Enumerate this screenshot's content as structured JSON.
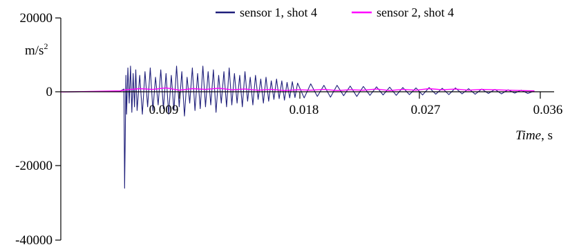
{
  "chart_data": {
    "type": "line",
    "title": "",
    "xlabel_italic": "Time",
    "xlabel_rest": ", s",
    "ylabel_base": "m/s",
    "ylabel_exp": "2",
    "xlim": [
      0,
      0.0375
    ],
    "ylim": [
      -40000,
      20000
    ],
    "x_ticks": [
      0.009,
      0.018,
      0.027,
      0.036
    ],
    "x_tick_labels": [
      "0.009",
      "0.018",
      "0.027",
      "0.036"
    ],
    "y_ticks": [
      20000,
      0,
      -20000,
      -40000
    ],
    "y_tick_labels": [
      "20000",
      "0",
      "-20000",
      "-40000"
    ],
    "grid": false,
    "legend_position": "top",
    "series": [
      {
        "name": "sensor 1, shot 4",
        "color": "#1f1f7a",
        "values_description": "impact acceleration trace",
        "x": [
          0,
          0.0045,
          0.0048,
          0.00485,
          0.0049,
          0.00495,
          0.005,
          0.0051,
          0.0052,
          0.0053,
          0.0054,
          0.0055,
          0.0056,
          0.0057,
          0.0058,
          0.006,
          0.0062,
          0.0064,
          0.0066,
          0.0068,
          0.007,
          0.0072,
          0.0074,
          0.0076,
          0.0078,
          0.008,
          0.0082,
          0.0084,
          0.0086,
          0.0088,
          0.009,
          0.0092,
          0.0094,
          0.0096,
          0.0098,
          0.01,
          0.0102,
          0.0104,
          0.0106,
          0.0108,
          0.011,
          0.0112,
          0.0114,
          0.0116,
          0.0118,
          0.012,
          0.0122,
          0.0124,
          0.0126,
          0.0128,
          0.013,
          0.0132,
          0.0134,
          0.0136,
          0.0138,
          0.014,
          0.0142,
          0.0144,
          0.0146,
          0.0148,
          0.015,
          0.0152,
          0.0154,
          0.0156,
          0.0158,
          0.016,
          0.0162,
          0.0164,
          0.0166,
          0.0168,
          0.017,
          0.0172,
          0.0174,
          0.0176,
          0.0178,
          0.018,
          0.0185,
          0.019,
          0.0195,
          0.02,
          0.0205,
          0.021,
          0.0215,
          0.022,
          0.0225,
          0.023,
          0.0235,
          0.024,
          0.0245,
          0.025,
          0.0255,
          0.026,
          0.0265,
          0.027,
          0.0275,
          0.028,
          0.0285,
          0.029,
          0.0295,
          0.03,
          0.0305,
          0.031,
          0.0315,
          0.032,
          0.0325,
          0.033,
          0.0335,
          0.034,
          0.0345,
          0.035,
          0.0355,
          0.036
        ],
        "y": [
          0,
          200,
          800,
          -26000,
          -12000,
          4500,
          -6000,
          6500,
          -3000,
          7000,
          -5500,
          5000,
          -4000,
          6000,
          -5000,
          4500,
          -6000,
          5500,
          -4000,
          6500,
          -5000,
          4000,
          -3500,
          6000,
          -4500,
          5000,
          -6000,
          4500,
          -5000,
          7000,
          -4000,
          5500,
          -6500,
          4000,
          -3000,
          6500,
          -5000,
          5000,
          -4500,
          7000,
          -4000,
          5500,
          -3500,
          6000,
          -5500,
          4500,
          -3000,
          5500,
          -4000,
          6500,
          -3500,
          5000,
          -3000,
          4500,
          -4000,
          5500,
          -2500,
          4000,
          -3500,
          4500,
          -2000,
          3500,
          -3000,
          4000,
          -2500,
          3000,
          -2000,
          3500,
          -1800,
          3000,
          -2200,
          2600,
          -1600,
          2800,
          -1500,
          2400,
          -1600,
          2200,
          -1200,
          1800,
          -1400,
          1800,
          -1000,
          1600,
          -1200,
          1500,
          -900,
          1400,
          -800,
          1300,
          -900,
          1200,
          -700,
          1100,
          -800,
          1200,
          -600,
          1000,
          -700,
          1100,
          -500,
          900,
          -600,
          800,
          -400,
          700,
          -500,
          600,
          -300,
          500,
          -400,
          300
        ]
      },
      {
        "name": "sensor 2, shot 4",
        "color": "#ff00ff",
        "values_description": "impact acceleration trace",
        "x": [
          0,
          0.0045,
          0.005,
          0.006,
          0.007,
          0.008,
          0.009,
          0.01,
          0.011,
          0.012,
          0.013,
          0.014,
          0.015,
          0.016,
          0.017,
          0.018,
          0.019,
          0.02,
          0.021,
          0.022,
          0.023,
          0.024,
          0.025,
          0.026,
          0.027,
          0.028,
          0.029,
          0.03,
          0.031,
          0.032,
          0.033,
          0.034,
          0.035,
          0.036
        ],
        "y": [
          0,
          300,
          600,
          900,
          700,
          1100,
          500,
          900,
          700,
          1000,
          600,
          800,
          500,
          700,
          400,
          600,
          500,
          700,
          400,
          600,
          500,
          800,
          400,
          700,
          500,
          900,
          600,
          800,
          500,
          700,
          600,
          500,
          400,
          300
        ]
      }
    ]
  }
}
